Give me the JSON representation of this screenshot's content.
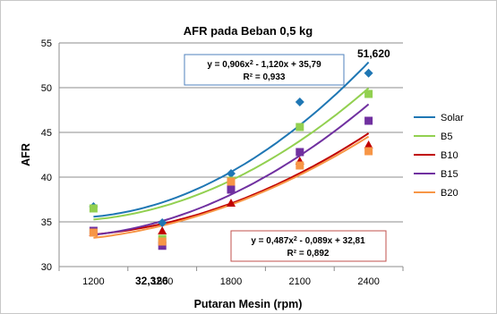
{
  "chart_data": {
    "type": "scatter",
    "title": "AFR pada Beban 0,5 kg",
    "xlabel": "Putaran Mesin (rpm)",
    "ylabel": "AFR",
    "x_categories": [
      "1200",
      "1500",
      "1800",
      "2100",
      "2400"
    ],
    "y_ticks": [
      "30",
      "35",
      "40",
      "45",
      "50",
      "55"
    ],
    "ylim": [
      30,
      55
    ],
    "grid": "horizontal",
    "legend_position": "right",
    "series": [
      {
        "name": "Solar",
        "color": "#1f77b4",
        "marker": "diamond",
        "values": [
          36.7,
          34.9,
          40.4,
          48.4,
          51.62
        ],
        "trend": [
          35.79,
          -1.12,
          0.906
        ]
      },
      {
        "name": "B5",
        "color": "#92d050",
        "marker": "square",
        "values": [
          36.5,
          33.1,
          39.6,
          45.6,
          49.3
        ],
        "trend": [
          35.3,
          -0.78,
          0.742
        ]
      },
      {
        "name": "B10",
        "color": "#c00000",
        "marker": "triangle",
        "values": [
          33.8,
          34.0,
          37.1,
          41.8,
          43.6
        ],
        "trend": [
          33.5,
          -0.45,
          0.546
        ]
      },
      {
        "name": "B15",
        "color": "#7030a0",
        "marker": "square",
        "values": [
          34.0,
          32.326,
          38.6,
          42.8,
          46.3
        ],
        "trend": [
          33.4,
          -0.55,
          0.7
        ]
      },
      {
        "name": "B20",
        "color": "#f79646",
        "marker": "square",
        "values": [
          33.8,
          32.8,
          39.5,
          41.3,
          42.9
        ],
        "trend": [
          32.81,
          -0.089,
          0.487
        ]
      }
    ],
    "annotations": {
      "max_label": "51,620",
      "min_label": "32,326"
    },
    "equations": {
      "top": {
        "line1_prefix": "y = 0,906x",
        "sup": "2",
        "line1_suffix": " - 1,120x + 35,79",
        "line2": "R² = 0,933",
        "border": "#4f81bd"
      },
      "bottom": {
        "line1_prefix": "y = 0,487x",
        "sup": "2",
        "line1_suffix": " - 0,089x + 32,81",
        "line2": "R² = 0,892",
        "border": "#c0504d"
      }
    }
  }
}
